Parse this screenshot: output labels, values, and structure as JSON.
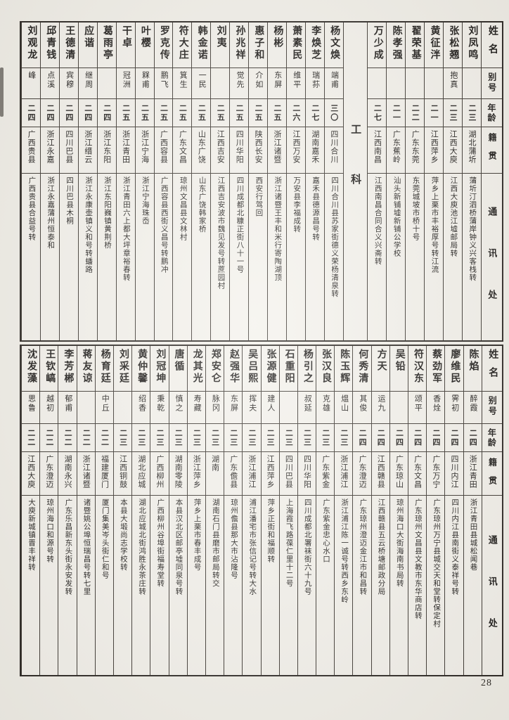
{
  "page": {
    "number": "28"
  },
  "headers": {
    "name": "姓名",
    "alias": "别号",
    "age": "年龄",
    "origin": "籍贯",
    "address": "通讯处"
  },
  "section_label": "工科",
  "tables": [
    {
      "id": "top",
      "section_before_index": 6,
      "people": [
        {
          "name": "刘凤鸣",
          "alias": "",
          "age": "二三",
          "origin": "湖北蒲圻",
          "address": "蒲圻汀泗桥蒲岸钟义兴客栈转"
        },
        {
          "name": "张松翘",
          "alias": "抱真",
          "age": "二三",
          "origin": "江西大庾",
          "address": "江西大庾池江墟邮局转"
        },
        {
          "name": "黄征泮",
          "alias": "",
          "age": "二一",
          "origin": "江西萍乡",
          "address": "萍乡上栗市丰裕厚号转江流"
        },
        {
          "name": "翟荣基",
          "alias": "",
          "age": "二二",
          "origin": "广东东莞",
          "address": "东莞城坡市桥十号"
        },
        {
          "name": "陈孝强",
          "alias": "",
          "age": "二一",
          "origin": "广东蕉岭",
          "address": "汕头新铺墟新铺公学校"
        },
        {
          "name": "万少成",
          "alias": "",
          "age": "二七",
          "origin": "江西南昌",
          "address": "江西南昌合同合义兴斋转"
        },
        {
          "name": "杨文焕",
          "alias": "端甫",
          "age": "三〇",
          "origin": "四川合川",
          "address": "四川合川县苏家街德义荣杨清泉转"
        },
        {
          "name": "李焕芝",
          "alias": "瑞荪",
          "age": "二七",
          "origin": "湖南嘉禾",
          "address": "嘉禾县德源昌号转"
        },
        {
          "name": "萧素民",
          "alias": "维平",
          "age": "二六",
          "origin": "江西万安",
          "address": "万安县李福成转"
        },
        {
          "name": "杨彬",
          "alias": "东屏",
          "age": "二五",
          "origin": "浙江诸暨",
          "address": "浙江诸暨王丰和米行寄陶湖顶"
        },
        {
          "name": "惠子和",
          "alias": "介如",
          "age": "二五",
          "origin": "陕西长安",
          "address": "西安行驾回"
        },
        {
          "name": "孙兆祥",
          "alias": "觉先",
          "age": "二五",
          "origin": "四川华阳",
          "address": "四川成都北糠正街八十一号"
        },
        {
          "name": "刘夷",
          "alias": "",
          "age": "二五",
          "origin": "江西吉安",
          "address": "江西吉安波市魏见发号转蔗园村"
        },
        {
          "name": "韩金诺",
          "alias": "一民",
          "age": "二五",
          "origin": "山东广饶",
          "address": "山东广饶韩家桥"
        },
        {
          "name": "符大庄",
          "alias": "箕生",
          "age": "二五",
          "origin": "广东文昌",
          "address": "琼州文昌县文林村"
        },
        {
          "name": "罗克传",
          "alias": "鹏飞",
          "age": "二五",
          "origin": "广西容县",
          "address": "广西容县西街义昌号转鹏冲"
        },
        {
          "name": "叶樱",
          "alias": "槑甫",
          "age": "二五",
          "origin": "浙江宁海",
          "address": "浙江宁海珠岙"
        },
        {
          "name": "干卓",
          "alias": "冠洲",
          "age": "二五",
          "origin": "浙江青田",
          "address": "浙江青田六上都大坪章裕春转"
        },
        {
          "name": "葛雨亭",
          "alias": "",
          "age": "二四",
          "origin": "浙江东阳",
          "address": "浙江东阳巍镇黄荆桥"
        },
        {
          "name": "应谐",
          "alias": "继周",
          "age": "二四",
          "origin": "浙江缙云",
          "address": "浙江永康壶镇义和号转蟠路"
        },
        {
          "name": "王德清",
          "alias": "宾穆",
          "age": "二四",
          "origin": "四川巴县",
          "address": "四川巴县木桐"
        },
        {
          "name": "邱青钱",
          "alias": "点溪",
          "age": "二四",
          "origin": "浙江永嘉",
          "address": "浙江永嘉蒲州恒泰和"
        },
        {
          "name": "刘观龙",
          "alias": "峰",
          "age": "二四",
          "origin": "广西贵县",
          "address": "广西贵县合益号转"
        }
      ]
    },
    {
      "id": "bottom",
      "section_before_index": -1,
      "people": [
        {
          "name": "陈焰",
          "alias": "醉霞",
          "age": "二四",
          "origin": "浙江青田",
          "address": "浙江青田县城松闻巷"
        },
        {
          "name": "廖维民",
          "alias": "霁初",
          "age": "二四",
          "origin": "四川内江",
          "address": "四川内江县南街义泰祥号转"
        },
        {
          "name": "蔡劲军",
          "alias": "香烇",
          "age": "二四",
          "origin": "广东万宁",
          "address": "广东琼州万宁县城交天和堂转保定村"
        },
        {
          "name": "符汉东",
          "alias": "颂平",
          "age": "二四",
          "origin": "广东文昌",
          "address": "广东琼州文昌县文教市东华商店转"
        },
        {
          "name": "吴铅",
          "alias": "",
          "age": "二四",
          "origin": "广东琼山",
          "address": "琼州海口大街海南书局转"
        },
        {
          "name": "方天",
          "alias": "运九",
          "age": "二四",
          "origin": "江西赣县",
          "address": "江西赣县五云桥塘邮政分局"
        },
        {
          "name": "何秀清",
          "alias": "其俊",
          "age": "二四",
          "origin": "广东澄迈",
          "address": "广东琼州澄迈金江市和昌转"
        },
        {
          "name": "陈玉辉",
          "alias": "煴山",
          "age": "二三",
          "origin": "浙江浦江",
          "address": "浙江浦江陈一诚号转西乡东岭"
        },
        {
          "name": "张汉良",
          "alias": "克雄",
          "age": "二三",
          "origin": "广东紫金",
          "address": "广东紫金忠心水口"
        },
        {
          "name": "杨引之",
          "alias": "叔延",
          "age": "二三",
          "origin": "四川华阳",
          "address": "四川成都北署袜街六十九号"
        },
        {
          "name": "石重阳",
          "alias": "",
          "age": "二三",
          "origin": "四川巴县",
          "address": "上海霞飞路葆仁里十二号"
        },
        {
          "name": "张源健",
          "alias": "建人",
          "age": "二三",
          "origin": "江西萍乡",
          "address": "萍乡正街和福顺转"
        },
        {
          "name": "吴吕熙",
          "alias": "挥夫",
          "age": "二三",
          "origin": "浙江浦江",
          "address": "浦江潘宅市张信记号转大水"
        },
        {
          "name": "赵强华",
          "alias": "东屏",
          "age": "二三",
          "origin": "广东儋县",
          "address": "琼州儋县那大市沾隆号"
        },
        {
          "name": "郑安仑",
          "alias": "脉冈",
          "age": "二三",
          "origin": "湖南",
          "address": "湖南石门县磨市邮局转交"
        },
        {
          "name": "龙其光",
          "alias": "寿藏",
          "age": "二三",
          "origin": "浙江萍乡",
          "address": "萍乡上栗市春丰成号"
        },
        {
          "name": "唐循",
          "alias": "慎之",
          "age": "二三",
          "origin": "湖南零陵",
          "address": "本县汉北区邮亭墟同泉号转"
        },
        {
          "name": "刘冠坤",
          "alias": "秉乾",
          "age": "二三",
          "origin": "广西柳州",
          "address": "广西柳州谷埠街福寿堂转"
        },
        {
          "name": "黄仲馨",
          "alias": "绍香",
          "age": "二三",
          "origin": "湖北应城",
          "address": "湖北应城北街鸿胜永茶庄转"
        },
        {
          "name": "刘采廷",
          "alias": "",
          "age": "二三",
          "origin": "江西铜鼓",
          "address": "本县大塅尚志学校转"
        },
        {
          "name": "杨育廷",
          "alias": "中丘",
          "age": "二二",
          "origin": "福建厦门",
          "address": "厦门集美岑头街仁和号"
        },
        {
          "name": "蒋友谅",
          "alias": "",
          "age": "二二",
          "origin": "浙江诸暨",
          "address": "诸暨姚公埠恒瑞昌号转七里"
        },
        {
          "name": "李芳郴",
          "alias": "郁甫",
          "age": "二二",
          "origin": "湖南永兴",
          "address": "广东乐昌新东头街永安发转"
        },
        {
          "name": "王钦嵪",
          "alias": "越初",
          "age": "二二",
          "origin": "广东澄迈",
          "address": "琼州海口和源号转"
        },
        {
          "name": "沈发藻",
          "alias": "思鲁",
          "age": "二二",
          "origin": "江西大庾",
          "address": "大庾新城镇晋丰祥转"
        }
      ]
    }
  ]
}
